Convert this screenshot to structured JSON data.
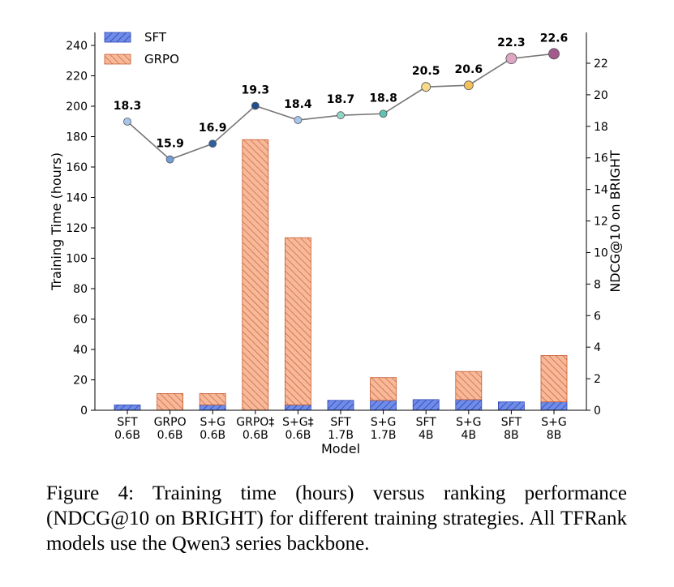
{
  "caption": "Figure 4: Training time (hours) versus ranking performance (NDCG@10 on BRIGHT) for different training strategies. All TFRank models use the Qwen3 series backbone.",
  "chart_data": {
    "type": "bar",
    "stacked": true,
    "x_label": "Model",
    "y_label_left": "Training Time (hours)",
    "y_label_right": "NDCG@10 on BRIGHT",
    "ylim_left": [
      0,
      250
    ],
    "ylim_right": [
      0,
      24
    ],
    "yticks_left": [
      0,
      20,
      40,
      60,
      80,
      100,
      120,
      140,
      160,
      180,
      200,
      220,
      240
    ],
    "yticks_right": [
      0,
      2,
      4,
      6,
      8,
      10,
      12,
      14,
      16,
      18,
      20,
      22
    ],
    "grid": false,
    "legend_position": "top-left",
    "categories": [
      [
        "SFT",
        "0.6B"
      ],
      [
        "GRPO",
        "0.6B"
      ],
      [
        "S+G",
        "0.6B"
      ],
      [
        "GRPO‡",
        "0.6B"
      ],
      [
        "S+G‡",
        "0.6B"
      ],
      [
        "SFT",
        "1.7B"
      ],
      [
        "S+G",
        "1.7B"
      ],
      [
        "SFT",
        "4B"
      ],
      [
        "S+G",
        "4B"
      ],
      [
        "SFT",
        "8B"
      ],
      [
        "S+G",
        "8B"
      ]
    ],
    "series": [
      {
        "name": "SFT",
        "color": "#6f8ce8",
        "edge": "#3a4fc0",
        "hatch": "///",
        "values": [
          3.5,
          0,
          3.5,
          0,
          3.5,
          6.5,
          6.5,
          7,
          7,
          5.5,
          5.5
        ]
      },
      {
        "name": "GRPO",
        "color": "#f7b99a",
        "edge": "#c65a2e",
        "hatch": "\\\\\\",
        "values": [
          0,
          11,
          7.5,
          178,
          110,
          0,
          15,
          0,
          18.5,
          0,
          30.5
        ]
      }
    ],
    "line_series": {
      "name": "NDCG@10",
      "axis": "right",
      "values": [
        18.3,
        15.9,
        16.9,
        19.3,
        18.4,
        18.7,
        18.8,
        20.5,
        20.6,
        22.3,
        22.6
      ],
      "labels": [
        "18.3",
        "15.9",
        "16.9",
        "19.3",
        "18.4",
        "18.7",
        "18.8",
        "20.5",
        "20.6",
        "22.3",
        "22.6"
      ],
      "line_color": "#777777",
      "marker_colors": [
        "#a9c4ea",
        "#6f9ed8",
        "#2f5f9e",
        "#1f4e8c",
        "#a9c4ea",
        "#8fd6c8",
        "#5fc2b4",
        "#f6d98a",
        "#f3c15a",
        "#dfa6c4",
        "#a35a8c"
      ]
    }
  }
}
